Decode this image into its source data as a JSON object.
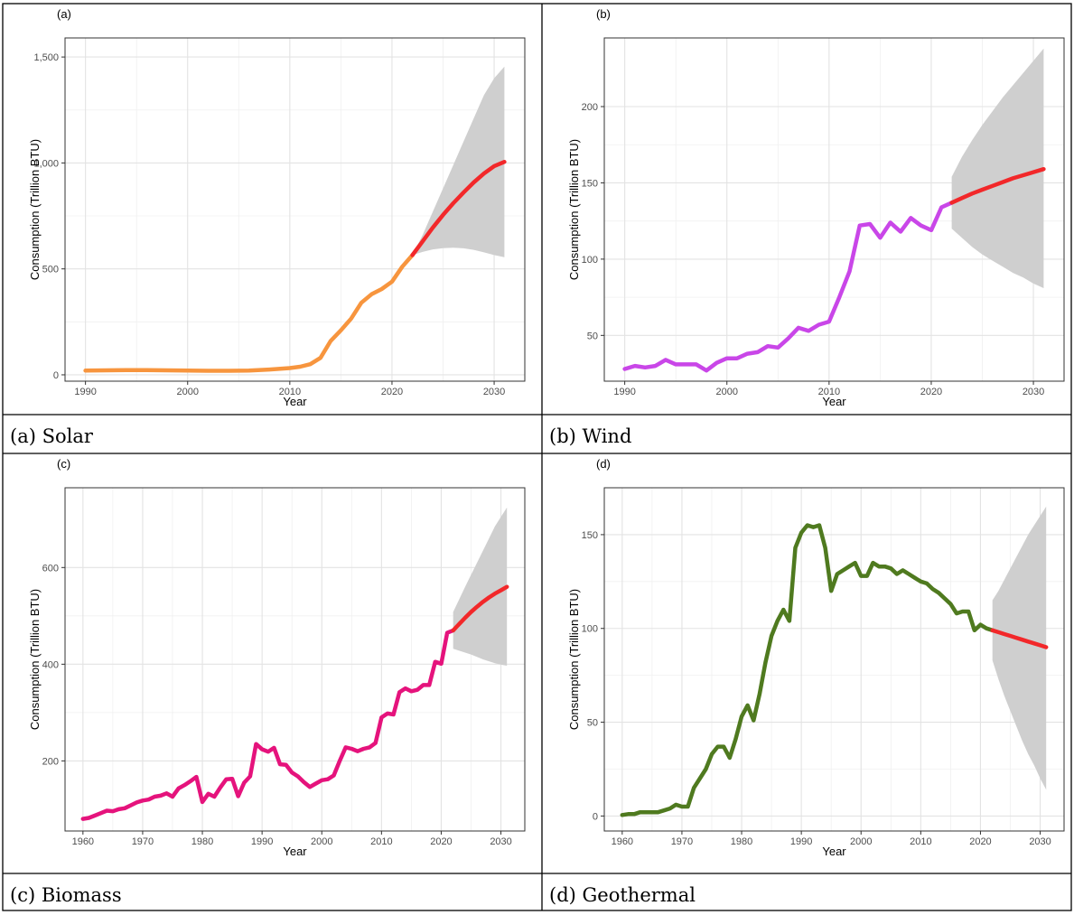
{
  "chart_data": [
    {
      "panel_label": "(a)",
      "caption": "(a) Solar",
      "type": "line",
      "xlabel": "Year",
      "ylabel": "Consumption (Trillion BTU)",
      "xlim": [
        1988,
        2033
      ],
      "ylim": [
        -30,
        1590
      ],
      "x_ticks": [
        1990,
        2000,
        2010,
        2020,
        2030
      ],
      "y_ticks": [
        0,
        500,
        1000,
        1500
      ],
      "y_tick_labels": [
        "0",
        "500",
        "1,000",
        "1,500"
      ],
      "grid": true,
      "series": [
        {
          "role": "historical",
          "color": "#f7953e",
          "x": [
            1990,
            1992,
            1994,
            1996,
            1998,
            2000,
            2002,
            2004,
            2006,
            2008,
            2010,
            2011,
            2012,
            2013,
            2014,
            2015,
            2016,
            2017,
            2018,
            2019,
            2020,
            2021,
            2022
          ],
          "y": [
            20,
            21,
            22,
            22,
            21,
            20,
            19,
            19,
            20,
            25,
            32,
            38,
            50,
            80,
            160,
            210,
            265,
            340,
            380,
            405,
            440,
            510,
            565
          ]
        },
        {
          "role": "forecast",
          "color": "#f2282a",
          "x": [
            2022,
            2023,
            2024,
            2025,
            2026,
            2027,
            2028,
            2029,
            2030,
            2031
          ],
          "y": [
            565,
            630,
            695,
            755,
            810,
            860,
            908,
            950,
            985,
            1005
          ]
        }
      ],
      "band": {
        "color": "#cfcfcf",
        "x": [
          2022,
          2023,
          2024,
          2025,
          2026,
          2027,
          2028,
          2029,
          2030,
          2031
        ],
        "upper": [
          565,
          660,
          770,
          880,
          990,
          1100,
          1210,
          1320,
          1400,
          1455
        ],
        "lower": [
          565,
          580,
          592,
          598,
          600,
          597,
          590,
          578,
          565,
          555
        ]
      }
    },
    {
      "panel_label": "(b)",
      "caption": "(b) Wind",
      "type": "line",
      "xlabel": "Year",
      "ylabel": "Consumption (Trillion BTU)",
      "xlim": [
        1988,
        2033
      ],
      "ylim": [
        20,
        245
      ],
      "x_ticks": [
        1990,
        2000,
        2010,
        2020,
        2030
      ],
      "y_ticks": [
        50,
        100,
        150,
        200
      ],
      "y_tick_labels": [
        "50",
        "100",
        "150",
        "200"
      ],
      "grid": true,
      "series": [
        {
          "role": "historical",
          "color": "#c946e8",
          "x": [
            1990,
            1991,
            1992,
            1993,
            1994,
            1995,
            1996,
            1997,
            1998,
            1999,
            2000,
            2001,
            2002,
            2003,
            2004,
            2005,
            2006,
            2007,
            2008,
            2009,
            2010,
            2011,
            2012,
            2013,
            2014,
            2015,
            2016,
            2017,
            2018,
            2019,
            2020,
            2021,
            2022
          ],
          "y": [
            28,
            30,
            29,
            30,
            34,
            31,
            31,
            31,
            27,
            32,
            35,
            35,
            38,
            39,
            43,
            42,
            48,
            55,
            53,
            57,
            59,
            75,
            92,
            122,
            123,
            114,
            124,
            118,
            127,
            122,
            119,
            134,
            137
          ]
        },
        {
          "role": "forecast",
          "color": "#f2282a",
          "x": [
            2022,
            2023,
            2024,
            2025,
            2026,
            2027,
            2028,
            2029,
            2030,
            2031
          ],
          "y": [
            137,
            140,
            143,
            145.5,
            148,
            150.5,
            153,
            155,
            157,
            159
          ]
        }
      ],
      "band": {
        "color": "#cfcfcf",
        "x": [
          2022,
          2023,
          2024,
          2025,
          2026,
          2027,
          2028,
          2029,
          2030,
          2031
        ],
        "upper": [
          154,
          167,
          178,
          188,
          197,
          206,
          214,
          222,
          230,
          238
        ],
        "lower": [
          120,
          114,
          108,
          103,
          99,
          95,
          91,
          88,
          84,
          81
        ]
      }
    },
    {
      "panel_label": "(c)",
      "caption": "(c) Biomass",
      "type": "line",
      "xlabel": "Year",
      "ylabel": "Consumption (Trillion BTU)",
      "xlim": [
        1957,
        2034
      ],
      "ylim": [
        55,
        765
      ],
      "x_ticks": [
        1960,
        1970,
        1980,
        1990,
        2000,
        2010,
        2020,
        2030
      ],
      "y_ticks": [
        200,
        400,
        600
      ],
      "y_tick_labels": [
        "200",
        "400",
        "600"
      ],
      "grid": true,
      "series": [
        {
          "role": "historical",
          "color": "#e5137c",
          "x": [
            1960,
            1961,
            1962,
            1963,
            1964,
            1965,
            1966,
            1967,
            1968,
            1969,
            1970,
            1971,
            1972,
            1973,
            1974,
            1975,
            1976,
            1977,
            1978,
            1979,
            1980,
            1981,
            1982,
            1983,
            1984,
            1985,
            1986,
            1987,
            1988,
            1989,
            1990,
            1991,
            1992,
            1993,
            1994,
            1995,
            1996,
            1997,
            1998,
            1999,
            2000,
            2001,
            2002,
            2003,
            2004,
            2005,
            2006,
            2007,
            2008,
            2009,
            2010,
            2011,
            2012,
            2013,
            2014,
            2015,
            2016,
            2017,
            2018,
            2019,
            2020,
            2021,
            2022
          ],
          "y": [
            80,
            82,
            87,
            92,
            97,
            96,
            100,
            102,
            108,
            114,
            118,
            120,
            126,
            128,
            133,
            126,
            143,
            150,
            158,
            167,
            115,
            132,
            126,
            145,
            162,
            163,
            127,
            155,
            168,
            235,
            224,
            219,
            227,
            193,
            192,
            176,
            168,
            156,
            146,
            153,
            160,
            162,
            170,
            200,
            228,
            225,
            220,
            225,
            228,
            237,
            290,
            298,
            296,
            342,
            350,
            344,
            347,
            357,
            357,
            405,
            401,
            465,
            470
          ]
        },
        {
          "role": "forecast",
          "color": "#f2282a",
          "x": [
            2022,
            2023,
            2024,
            2025,
            2026,
            2027,
            2028,
            2029,
            2030,
            2031
          ],
          "y": [
            470,
            483,
            496,
            508,
            519,
            529,
            538,
            546,
            553,
            560
          ]
        }
      ],
      "band": {
        "color": "#cfcfcf",
        "x": [
          2022,
          2023,
          2024,
          2025,
          2026,
          2027,
          2028,
          2029,
          2030,
          2031
        ],
        "upper": [
          508,
          534,
          560,
          585,
          610,
          635,
          660,
          685,
          705,
          724
        ],
        "lower": [
          432,
          428,
          424,
          420,
          415,
          410,
          406,
          402,
          399,
          397
        ]
      }
    },
    {
      "panel_label": "(d)",
      "caption": "(d) Geothermal",
      "type": "line",
      "xlabel": "Year",
      "ylabel": "Consumption (Trillion BTU)",
      "xlim": [
        1957,
        2034
      ],
      "ylim": [
        -8,
        175
      ],
      "x_ticks": [
        1960,
        1970,
        1980,
        1990,
        2000,
        2010,
        2020,
        2030
      ],
      "y_ticks": [
        0,
        50,
        100,
        150
      ],
      "y_tick_labels": [
        "0",
        "50",
        "100",
        "150"
      ],
      "grid": true,
      "series": [
        {
          "role": "historical",
          "color": "#4f7a1f",
          "x": [
            1960,
            1961,
            1962,
            1963,
            1964,
            1965,
            1966,
            1967,
            1968,
            1969,
            1970,
            1971,
            1972,
            1973,
            1974,
            1975,
            1976,
            1977,
            1978,
            1979,
            1980,
            1981,
            1982,
            1983,
            1984,
            1985,
            1986,
            1987,
            1988,
            1989,
            1990,
            1991,
            1992,
            1993,
            1994,
            1995,
            1996,
            1997,
            1998,
            1999,
            2000,
            2001,
            2002,
            2003,
            2004,
            2005,
            2006,
            2007,
            2008,
            2009,
            2010,
            2011,
            2012,
            2013,
            2014,
            2015,
            2016,
            2017,
            2018,
            2019,
            2020,
            2021,
            2022
          ],
          "y": [
            0.5,
            1,
            1,
            2,
            2,
            2,
            2,
            3,
            4,
            6,
            5,
            5,
            15,
            20,
            25,
            33,
            37,
            37,
            31,
            41,
            53,
            59,
            51,
            65,
            82,
            96,
            104,
            110,
            104,
            143,
            151,
            155,
            154,
            155,
            143,
            120,
            129,
            131,
            133,
            135,
            128,
            128,
            135,
            133,
            133,
            132,
            129,
            131,
            129,
            127,
            125,
            124,
            121,
            119,
            116,
            113,
            108,
            109,
            109,
            99,
            102,
            100,
            99
          ]
        },
        {
          "role": "forecast",
          "color": "#f2282a",
          "x": [
            2022,
            2023,
            2024,
            2025,
            2026,
            2027,
            2028,
            2029,
            2030,
            2031
          ],
          "y": [
            99,
            98,
            97,
            96,
            95,
            94,
            93,
            92,
            91,
            90
          ]
        }
      ],
      "band": {
        "color": "#cfcfcf",
        "x": [
          2022,
          2023,
          2024,
          2025,
          2026,
          2027,
          2028,
          2029,
          2030,
          2031
        ],
        "upper": [
          115,
          120,
          126,
          132,
          138,
          144,
          150,
          155,
          160,
          165
        ],
        "lower": [
          83,
          73,
          64,
          56,
          48,
          40,
          33,
          27,
          20,
          14
        ]
      }
    }
  ]
}
